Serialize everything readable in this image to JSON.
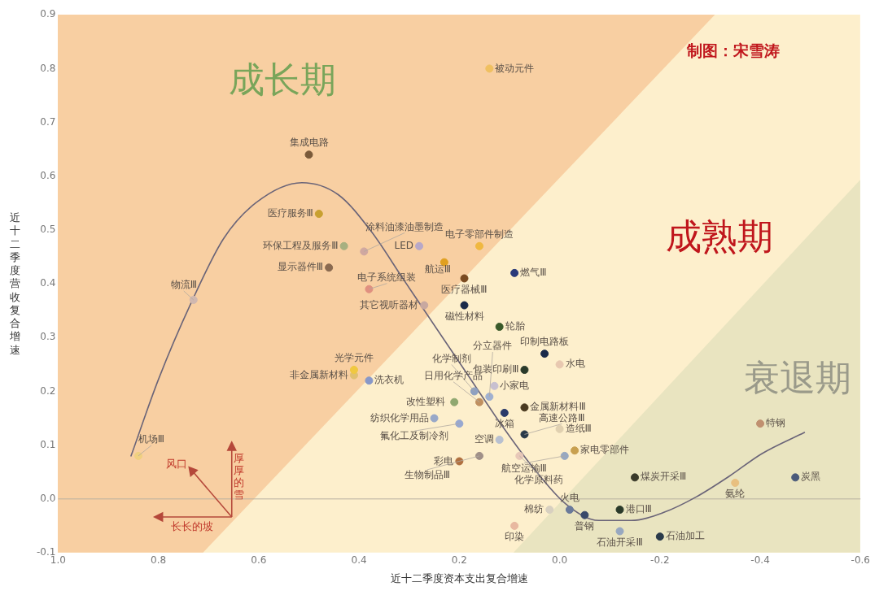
{
  "chart_data": {
    "type": "scatter",
    "xlabel": "近十二季度资本支出复合增速",
    "ylabel": "近十二季度营收复合增速",
    "annotations": [
      "制图：宋雪涛",
      "成长期",
      "成熟期",
      "衰退期",
      "风口",
      "厚厚的雪",
      "长长的坡"
    ],
    "xlim": [
      1.0,
      -0.6
    ],
    "xticks": [
      {
        "value": 1.0,
        "label": "1.0"
      },
      {
        "value": 0.8,
        "label": "0.8"
      },
      {
        "value": 0.6,
        "label": "0.6"
      },
      {
        "value": 0.4,
        "label": "0.4"
      },
      {
        "value": 0.2,
        "label": "0.2"
      },
      {
        "value": 0,
        "label": "0.0"
      },
      -0.2,
      -0.4,
      -0.6
    ],
    "ylim": [
      -0.1,
      0.9
    ],
    "yticks": [
      -0.1,
      {
        "value": 0,
        "label": "0.0"
      },
      0.1,
      0.2,
      0.3,
      0.4,
      0.5,
      0.6,
      0.7,
      0.8,
      0.9
    ],
    "ref_lines": [
      {
        "axis": "y",
        "value": 0,
        "color": "#b8b0a0"
      }
    ],
    "grid": false,
    "legend": false,
    "marker": "circle",
    "series": [
      {
        "name": "被动元件",
        "color": "#f0c060",
        "x": [
          0.14
        ],
        "values": [
          0.8
        ]
      },
      {
        "name": "集成电路",
        "color": "#7a5a3a",
        "x": [
          0.5
        ],
        "values": [
          0.64
        ]
      },
      {
        "name": "医疗服务Ⅲ",
        "color": "#c8a030",
        "x": [
          0.48
        ],
        "values": [
          0.53
        ]
      },
      {
        "name": "环保工程及服务Ⅲ",
        "color": "#a8b080",
        "x": [
          0.43
        ],
        "values": [
          0.47
        ]
      },
      {
        "name": "涂料油漆油墨制造",
        "color": "#d0a8a0",
        "x": [
          0.39
        ],
        "values": [
          0.46
        ]
      },
      {
        "name": "LED",
        "color": "#b8a8c8",
        "x": [
          0.28
        ],
        "values": [
          0.47
        ]
      },
      {
        "name": "显示器件Ⅲ",
        "color": "#8a6a50",
        "x": [
          0.46
        ],
        "values": [
          0.43
        ]
      },
      {
        "name": "物流Ⅲ",
        "color": "#d0b8b0",
        "x": [
          0.73
        ],
        "values": [
          0.37
        ]
      },
      {
        "name": "电子系统组装",
        "color": "#e09080",
        "x": [
          0.38
        ],
        "values": [
          0.39
        ]
      },
      {
        "name": "电子零部件制造",
        "color": "#f0b840",
        "x": [
          0.16
        ],
        "values": [
          0.47
        ]
      },
      {
        "name": "航运Ⅲ",
        "color": "#e0a020",
        "x": [
          0.23
        ],
        "values": [
          0.44
        ]
      },
      {
        "name": "医疗器械Ⅲ",
        "color": "#7a4a20",
        "x": [
          0.19
        ],
        "values": [
          0.41
        ]
      },
      {
        "name": "燃气Ⅲ",
        "color": "#2a3a7a",
        "x": [
          0.09
        ],
        "values": [
          0.42
        ]
      },
      {
        "name": "其它视听器材",
        "color": "#c8a8a0",
        "x": [
          0.27
        ],
        "values": [
          0.36
        ]
      },
      {
        "name": "磁性材料",
        "color": "#1a2a4a",
        "x": [
          0.19
        ],
        "values": [
          0.36
        ]
      },
      {
        "name": "轮胎",
        "color": "#3a5a2a",
        "x": [
          0.12
        ],
        "values": [
          0.32
        ]
      },
      {
        "name": "印制电路板",
        "color": "#1a2a4a",
        "x": [
          0.03
        ],
        "values": [
          0.27
        ]
      },
      {
        "name": "分立器件",
        "color": "#a0b0d0",
        "x": [
          0.14
        ],
        "values": [
          0.19
        ]
      },
      {
        "name": "小家电",
        "color": "#c8c0d0",
        "x": [
          0.13
        ],
        "values": [
          0.21
        ]
      },
      {
        "name": "化学制剂",
        "color": "#8ea0c0",
        "x": [
          0.17
        ],
        "values": [
          0.2
        ]
      },
      {
        "name": "日用化学产品",
        "color": "#c09060",
        "x": [
          0.16
        ],
        "values": [
          0.18
        ]
      },
      {
        "name": "改性塑料",
        "color": "#90a870",
        "x": [
          0.21
        ],
        "values": [
          0.18
        ]
      },
      {
        "name": "包装印刷Ⅲ",
        "color": "#2a3a2a",
        "x": [
          0.07
        ],
        "values": [
          0.24
        ]
      },
      {
        "name": "水电",
        "color": "#e8c8b0",
        "x": [
          0.0
        ],
        "values": [
          0.25
        ]
      },
      {
        "name": "金属新材料Ⅲ",
        "color": "#4a3a20",
        "x": [
          0.07
        ],
        "values": [
          0.17
        ]
      },
      {
        "name": "冰箱",
        "color": "#2a3a6a",
        "x": [
          0.11
        ],
        "values": [
          0.16
        ]
      },
      {
        "name": "纺织化学用品",
        "color": "#98a8c8",
        "x": [
          0.25
        ],
        "values": [
          0.15
        ]
      },
      {
        "name": "氟化工及制冷剂",
        "color": "#98a8d0",
        "x": [
          0.2
        ],
        "values": [
          0.14
        ]
      },
      {
        "name": "高速公路Ⅲ",
        "color": "#2a3a4a",
        "x": [
          0.07
        ],
        "values": [
          0.12
        ]
      },
      {
        "name": "造纸Ⅲ",
        "color": "#e0d0b0",
        "x": [
          0.0
        ],
        "values": [
          0.13
        ]
      },
      {
        "name": "空调",
        "color": "#b8c0d0",
        "x": [
          0.12
        ],
        "values": [
          0.11
        ]
      },
      {
        "name": "家电零部件",
        "color": "#c8a050",
        "x": [
          -0.03
        ],
        "values": [
          0.09
        ]
      },
      {
        "name": "航空运输Ⅲ",
        "color": "#98a8c0",
        "x": [
          -0.01
        ],
        "values": [
          0.08
        ]
      },
      {
        "name": "化学原料药",
        "color": "#e8c8b8",
        "x": [
          0.08
        ],
        "values": [
          0.08
        ]
      },
      {
        "name": "彩电",
        "color": "#b07040",
        "x": [
          0.2
        ],
        "values": [
          0.07
        ]
      },
      {
        "name": "生物制品Ⅲ",
        "color": "#a09088",
        "x": [
          0.16
        ],
        "values": [
          0.08
        ]
      },
      {
        "name": "机场Ⅲ",
        "color": "#f0d080",
        "x": [
          0.84
        ],
        "values": [
          0.08
        ]
      },
      {
        "name": "光学元件",
        "color": "#f0c840",
        "x": [
          0.41
        ],
        "values": [
          0.24
        ]
      },
      {
        "name": "非金属新材料",
        "color": "#e0c070",
        "x": [
          0.41
        ],
        "values": [
          0.23
        ]
      },
      {
        "name": "洗衣机",
        "color": "#8898c8",
        "x": [
          0.38
        ],
        "values": [
          0.22
        ]
      },
      {
        "name": "煤炭开采Ⅲ",
        "color": "#3a3a2a",
        "x": [
          -0.15
        ],
        "values": [
          0.04
        ]
      },
      {
        "name": "特钢",
        "color": "#c09070",
        "x": [
          -0.4
        ],
        "values": [
          0.14
        ]
      },
      {
        "name": "氨纶",
        "color": "#e8c080",
        "x": [
          -0.35
        ],
        "values": [
          0.03
        ]
      },
      {
        "name": "炭黑",
        "color": "#4a5a7a",
        "x": [
          -0.47
        ],
        "values": [
          0.04
        ]
      },
      {
        "name": "火电",
        "color": "#6a7a9a",
        "x": [
          -0.02
        ],
        "values": [
          -0.02
        ]
      },
      {
        "name": "棉纺",
        "color": "#d8d0c0",
        "x": [
          0.02
        ],
        "values": [
          -0.02
        ]
      },
      {
        "name": "港口Ⅲ",
        "color": "#2a3a2a",
        "x": [
          -0.12
        ],
        "values": [
          -0.02
        ]
      },
      {
        "name": "普钢",
        "color": "#3a4a6a",
        "x": [
          -0.05
        ],
        "values": [
          -0.03
        ]
      },
      {
        "name": "印染",
        "color": "#e8b8a0",
        "x": [
          0.09
        ],
        "values": [
          -0.05
        ]
      },
      {
        "name": "石油开采Ⅲ",
        "color": "#98a8c0",
        "x": [
          -0.12
        ],
        "values": [
          -0.06
        ]
      },
      {
        "name": "石油加工",
        "color": "#2a3a4a",
        "x": [
          -0.2
        ],
        "values": [
          -0.07
        ]
      },
      {
        "type": "line",
        "color": "#6a6478",
        "marker": "none",
        "x": [
          0.855,
          0.8,
          0.735,
          0.67,
          0.605,
          0.514,
          0.442,
          0.377,
          0.312,
          0.247,
          0.182,
          0.117,
          0.052,
          -0.013,
          -0.078,
          -0.143,
          -0.208,
          -0.273,
          -0.338,
          -0.403,
          -0.489
        ],
        "values": [
          0.079,
          0.222,
          0.364,
          0.484,
          0.551,
          0.588,
          0.566,
          0.499,
          0.409,
          0.319,
          0.229,
          0.139,
          0.057,
          -0.01,
          -0.04,
          -0.04,
          -0.025,
          0.004,
          0.042,
          0.084,
          0.124
        ]
      }
    ]
  }
}
